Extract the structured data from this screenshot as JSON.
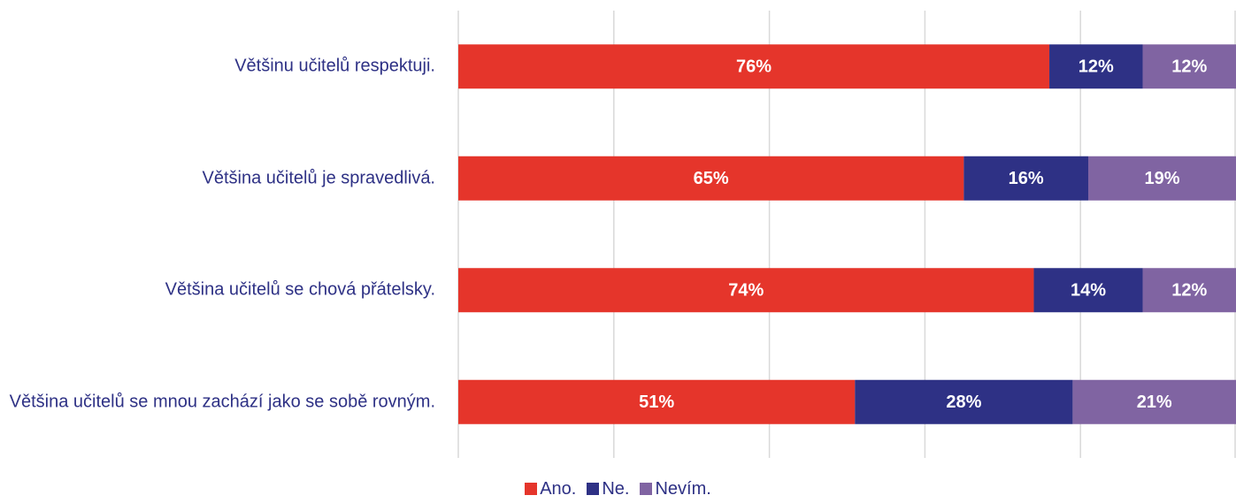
{
  "chart_data": {
    "type": "stacked-bar-horizontal",
    "categories": [
      "Většinu učitelů respektuji.",
      "Většina učitelů je spravedlivá.",
      "Většina učitelů se chová přátelsky.",
      "Většina učitelů se mnou zachází jako se sobě rovným."
    ],
    "series": [
      {
        "name": "Ano.",
        "color": "#e5352b",
        "values": [
          76,
          65,
          74,
          51
        ],
        "value_labels": [
          "76%",
          "65%",
          "74%",
          "51%"
        ]
      },
      {
        "name": "Ne.",
        "color": "#2e3185",
        "values": [
          12,
          16,
          14,
          28
        ],
        "value_labels": [
          "12%",
          "16%",
          "14%",
          "28%"
        ]
      },
      {
        "name": "Nevím.",
        "color": "#8064a2",
        "values": [
          12,
          19,
          12,
          21
        ],
        "value_labels": [
          "12%",
          "19%",
          "12%",
          "21%"
        ]
      }
    ],
    "xlim": [
      0,
      100
    ],
    "xticks": [
      0,
      20,
      40,
      60,
      80,
      100
    ],
    "grid": true,
    "legend": "bottom"
  }
}
